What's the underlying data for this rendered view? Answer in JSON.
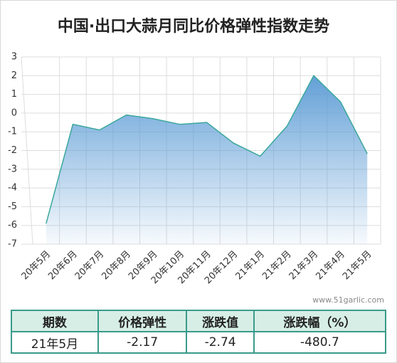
{
  "chart_data": {
    "type": "line",
    "title": "中国·出口大蒜月同比价格弹性指数走势",
    "categories": [
      "20年5月",
      "20年6月",
      "20年7月",
      "20年8月",
      "20年9月",
      "20年10月",
      "20年11月",
      "20年12月",
      "21年1月",
      "21年2月",
      "21年3月",
      "21年4月",
      "21年5月"
    ],
    "series": [
      {
        "name": "价格弹性",
        "color": "#3aa89c",
        "values": [
          -5.9,
          -0.6,
          -0.9,
          -0.1,
          -0.3,
          -0.6,
          -0.5,
          -1.6,
          -2.3,
          -0.7,
          2.0,
          0.6,
          -2.17
        ]
      }
    ],
    "area_color": "#5b9bd5",
    "ylim": [
      -7,
      3
    ],
    "yticks": [
      3,
      2,
      1,
      0,
      -1,
      -2,
      -3,
      -4,
      -5,
      -6,
      -7
    ],
    "grid": true
  },
  "watermark": "www.51garlic.com",
  "table": {
    "header": [
      "期数",
      "价格弹性",
      "涨跌值",
      "涨跌幅（%）"
    ],
    "rows": [
      [
        "21年5月",
        "-2.17",
        "-2.74",
        "-480.7"
      ]
    ]
  }
}
